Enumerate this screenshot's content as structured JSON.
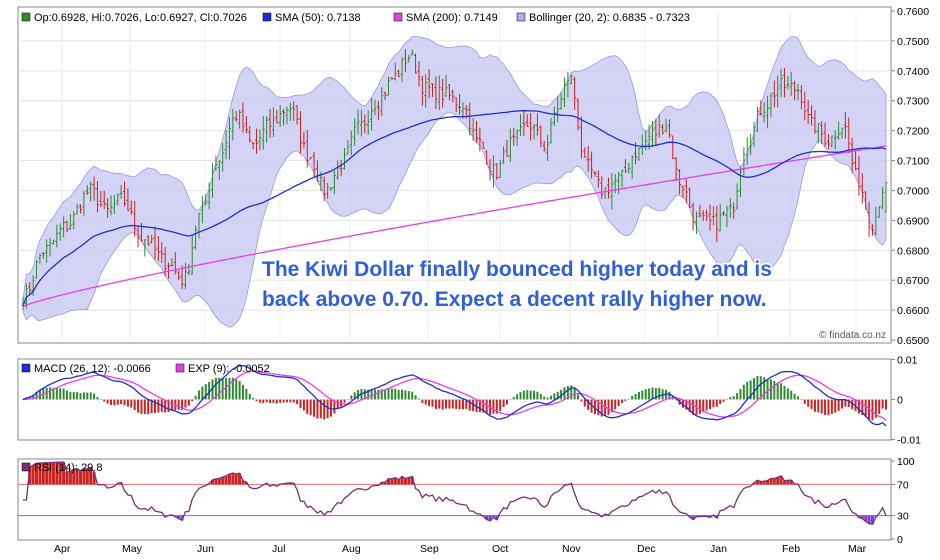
{
  "chart_data": [
    {
      "type": "candlestick",
      "legend": {
        "ohlc": "Op:0.6928, Hi:0.7026, Lo:0.6927, Cl:0.7026",
        "sma50": "SMA (50): 0.7138",
        "sma200": "SMA (200): 0.7149",
        "bollinger": "Bollinger (20, 2): 0.6835 - 0.7323"
      },
      "ylim": [
        0.65,
        0.76
      ],
      "y_ticks": [
        "0.7600",
        "0.7500",
        "0.7400",
        "0.7300",
        "0.7200",
        "0.7100",
        "0.7000",
        "0.6900",
        "0.6800",
        "0.6700",
        "0.6600",
        "0.6500"
      ],
      "x_ticks": [
        "Apr",
        "May",
        "Jun",
        "Jul",
        "Aug",
        "Sep",
        "Oct",
        "Nov",
        "Dec",
        "Jan",
        "Feb",
        "Mar"
      ],
      "price_keypoints": [
        {
          "date": "Mar 25",
          "close": 0.664
        },
        {
          "date": "Apr 3",
          "close": 0.68
        },
        {
          "date": "Apr 12",
          "close": 0.688
        },
        {
          "date": "Apr 22",
          "close": 0.7
        },
        {
          "date": "Apr 29",
          "close": 0.693
        },
        {
          "date": "May 5",
          "close": 0.697
        },
        {
          "date": "May 14",
          "close": 0.684
        },
        {
          "date": "May 24",
          "close": 0.676
        },
        {
          "date": "May 31",
          "close": 0.67
        },
        {
          "date": "Jun 7",
          "close": 0.692
        },
        {
          "date": "Jun 14",
          "close": 0.71
        },
        {
          "date": "Jun 22",
          "close": 0.725
        },
        {
          "date": "Jun 29",
          "close": 0.715
        },
        {
          "date": "Jul 6",
          "close": 0.722
        },
        {
          "date": "Jul 14",
          "close": 0.728
        },
        {
          "date": "Jul 22",
          "close": 0.712
        },
        {
          "date": "Jul 29",
          "close": 0.7
        },
        {
          "date": "Aug 5",
          "close": 0.709
        },
        {
          "date": "Aug 12",
          "close": 0.721
        },
        {
          "date": "Aug 20",
          "close": 0.73
        },
        {
          "date": "Aug 27",
          "close": 0.738
        },
        {
          "date": "Sep 2",
          "close": 0.745
        },
        {
          "date": "Sep 9",
          "close": 0.734
        },
        {
          "date": "Sep 17",
          "close": 0.732
        },
        {
          "date": "Sep 24",
          "close": 0.729
        },
        {
          "date": "Oct 1",
          "close": 0.716
        },
        {
          "date": "Oct 8",
          "close": 0.706
        },
        {
          "date": "Oct 15",
          "close": 0.716
        },
        {
          "date": "Oct 22",
          "close": 0.722
        },
        {
          "date": "Oct 29",
          "close": 0.715
        },
        {
          "date": "Nov 3",
          "close": 0.728
        },
        {
          "date": "Nov 8",
          "close": 0.738
        },
        {
          "date": "Nov 15",
          "close": 0.708
        },
        {
          "date": "Nov 22",
          "close": 0.7
        },
        {
          "date": "Nov 29",
          "close": 0.704
        },
        {
          "date": "Dec 6",
          "close": 0.713
        },
        {
          "date": "Dec 13",
          "close": 0.719
        },
        {
          "date": "Dec 18",
          "close": 0.722
        },
        {
          "date": "Dec 24",
          "close": 0.703
        },
        {
          "date": "Dec 31",
          "close": 0.69
        },
        {
          "date": "Jan 7",
          "close": 0.689
        },
        {
          "date": "Jan 14",
          "close": 0.693
        },
        {
          "date": "Jan 21",
          "close": 0.716
        },
        {
          "date": "Jan 28",
          "close": 0.728
        },
        {
          "date": "Feb 4",
          "close": 0.735
        },
        {
          "date": "Feb 11",
          "close": 0.734
        },
        {
          "date": "Feb 17",
          "close": 0.722
        },
        {
          "date": "Feb 24",
          "close": 0.717
        },
        {
          "date": "Mar 2",
          "close": 0.722
        },
        {
          "date": "Mar 8",
          "close": 0.704
        },
        {
          "date": "Mar 14",
          "close": 0.689
        },
        {
          "date": "Mar 20",
          "close": 0.7026
        }
      ],
      "colors": {
        "up": "#2e8b2e",
        "down": "#cc2222",
        "sma50": "#1f2fd0",
        "sma200": "#e83ee8",
        "bollinger_fill": "#c8c8f2",
        "bollinger_edge": "#9a9ae0"
      },
      "annotation_lines": [
        "The Kiwi Dollar finally bounced higher today and is",
        "back above 0.70. Expect a decent rally higher now."
      ],
      "watermark": "© findata.co.nz"
    },
    {
      "type": "macd",
      "legend": {
        "macd": "MACD (26, 12): -0.0066",
        "exp": "EXP (9): -0.0052"
      },
      "ylim": [
        -0.01,
        0.01
      ],
      "y_ticks": [
        "0.01",
        "0",
        "-0.01"
      ],
      "colors": {
        "macd": "#1f2fd0",
        "exp": "#e83ee8",
        "hist_up": "#2e8b2e",
        "hist_down": "#cc2222"
      }
    },
    {
      "type": "rsi",
      "legend": {
        "rsi": "RSI (14): 29.8"
      },
      "ylim": [
        0,
        100
      ],
      "y_ticks": [
        "100",
        "70",
        "30",
        "0"
      ],
      "levels": [
        70,
        30
      ],
      "colors": {
        "line": "#7a2f7a",
        "overbought": "#cc2222",
        "oversold": "#7a3fd0",
        "level70": "#e07070",
        "level30": "#7070e0"
      }
    }
  ]
}
